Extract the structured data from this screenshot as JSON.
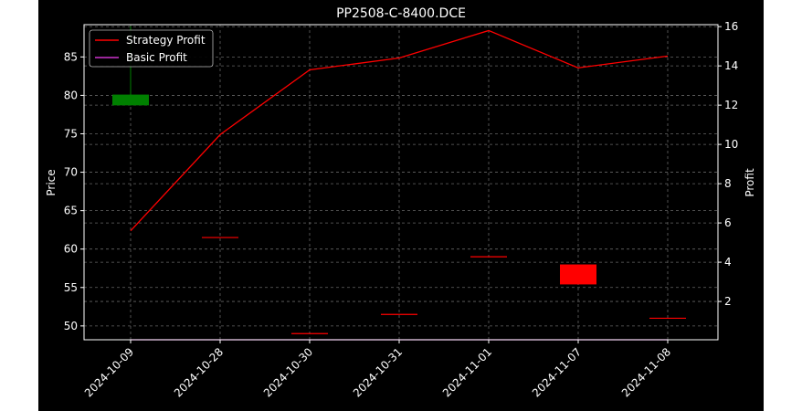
{
  "chart_data": {
    "type": "candlestick+line",
    "title": "PP2508-C-8400.DCE",
    "ylabel_left": "Price",
    "ylabel_right": "Profit",
    "ylim_left": [
      48.2,
      89.2
    ],
    "ylim_right": [
      0.05,
      16.1
    ],
    "yticks_left": [
      50,
      55,
      60,
      65,
      70,
      75,
      80,
      85
    ],
    "yticks_right": [
      2,
      4,
      6,
      8,
      10,
      12,
      14,
      16
    ],
    "grid": true,
    "legend_position": "top-left",
    "x_dates": [
      "2024-10-09",
      "2024-10-28",
      "2024-10-30",
      "2024-10-31",
      "2024-11-01",
      "2024-11-07",
      "2024-11-08"
    ],
    "candles": [
      {
        "date": "2024-10-09",
        "open": 78.7,
        "high": 89.0,
        "low": 78.7,
        "close": 80.1,
        "color": "#008000"
      },
      {
        "date": "2024-10-28",
        "open": 61.5,
        "high": 61.5,
        "low": 61.5,
        "close": 61.5,
        "color": "#ff0000"
      },
      {
        "date": "2024-10-30",
        "open": 49.0,
        "high": 49.0,
        "low": 49.0,
        "close": 49.0,
        "color": "#ff0000"
      },
      {
        "date": "2024-10-31",
        "open": 51.5,
        "high": 51.5,
        "low": 51.5,
        "close": 51.5,
        "color": "#ff0000"
      },
      {
        "date": "2024-11-01",
        "open": 59.0,
        "high": 59.0,
        "low": 59.0,
        "close": 59.0,
        "color": "#ff0000"
      },
      {
        "date": "2024-11-07",
        "open": 58.0,
        "high": 58.0,
        "low": 55.4,
        "close": 55.4,
        "color": "#ff0000"
      },
      {
        "date": "2024-11-08",
        "open": 51.0,
        "high": 51.0,
        "low": 51.0,
        "close": 51.0,
        "color": "#ff0000"
      }
    ],
    "series": [
      {
        "name": "Strategy Profit",
        "axis": "right",
        "color": "#ff0000",
        "values": [
          5.6,
          10.5,
          13.8,
          14.4,
          15.8,
          13.9,
          14.5
        ]
      },
      {
        "name": "Basic Profit",
        "axis": "right",
        "color": "#cc33cc",
        "values": [
          0.05,
          0.05,
          0.05,
          0.05,
          0.05,
          0.05,
          0.05
        ]
      }
    ]
  }
}
